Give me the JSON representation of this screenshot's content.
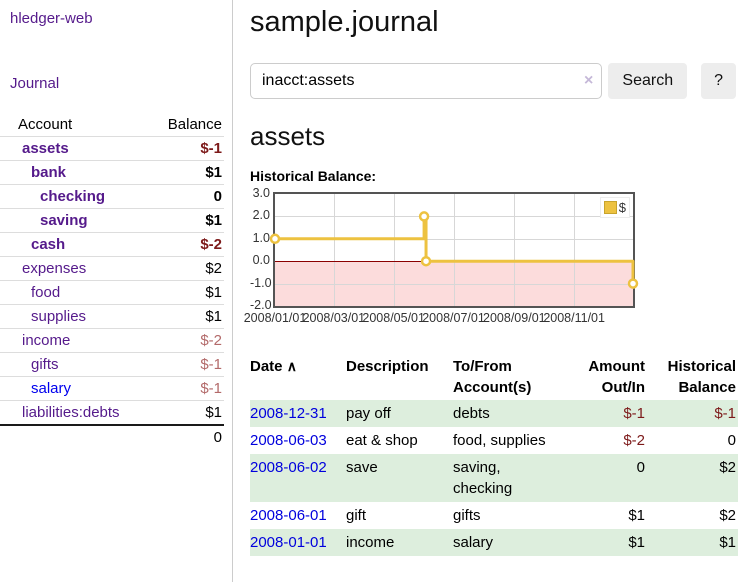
{
  "sidebar": {
    "brand": "hledger-web",
    "nav": {
      "journal": "Journal"
    },
    "accounts_table": {
      "col_account": "Account",
      "col_balance": "Balance",
      "rows": [
        {
          "name": "assets",
          "balance": "$-1"
        },
        {
          "name": "bank",
          "balance": "$1"
        },
        {
          "name": "checking",
          "balance": "0"
        },
        {
          "name": "saving",
          "balance": "$1"
        },
        {
          "name": "cash",
          "balance": "$-2"
        },
        {
          "name": "expenses",
          "balance": "$2"
        },
        {
          "name": "food",
          "balance": "$1"
        },
        {
          "name": "supplies",
          "balance": "$1"
        },
        {
          "name": "income",
          "balance": "$-2"
        },
        {
          "name": "gifts",
          "balance": "$-1"
        },
        {
          "name": "salary",
          "balance": "$-1"
        },
        {
          "name": "liabilities:debts",
          "balance": "$1"
        }
      ],
      "total": "0"
    }
  },
  "main": {
    "title": "sample.journal",
    "search": {
      "value": "inacct:assets",
      "clear_icon": "×",
      "search_button": "Search",
      "help_button": "?"
    },
    "account_heading": "assets",
    "chart_heading": "Historical Balance:"
  },
  "chart_data": {
    "type": "line",
    "step": true,
    "title": "Historical Balance",
    "xlim": [
      "2008-01-01",
      "2008-12-31"
    ],
    "ylim": [
      -2,
      3
    ],
    "grid": true,
    "legend_position": "top-right",
    "legend": [
      {
        "label": "$",
        "color": "#edc240"
      }
    ],
    "y_ticks": [
      {
        "v": 3,
        "label": "3.0"
      },
      {
        "v": 2,
        "label": "2.0"
      },
      {
        "v": 1,
        "label": "1.0"
      },
      {
        "v": 0,
        "label": "0.0"
      },
      {
        "v": -1,
        "label": "-1.0"
      },
      {
        "v": -2,
        "label": "-2.0"
      }
    ],
    "x_ticks": [
      {
        "date": "2008-01-01",
        "label": "2008/01/01"
      },
      {
        "date": "2008-03-01",
        "label": "2008/03/01"
      },
      {
        "date": "2008-05-01",
        "label": "2008/05/01"
      },
      {
        "date": "2008-07-01",
        "label": "2008/07/01"
      },
      {
        "date": "2008-09-01",
        "label": "2008/09/01"
      },
      {
        "date": "2008-11-01",
        "label": "2008/11/01"
      }
    ],
    "series": [
      {
        "name": "$",
        "color": "#edc240",
        "points": [
          [
            "2008-01-01",
            1
          ],
          [
            "2008-06-01",
            2
          ],
          [
            "2008-06-03",
            0
          ],
          [
            "2008-12-31",
            -1
          ]
        ]
      }
    ],
    "negative_region_color": "#fcdcdc",
    "zero_line_color": "#8b0000"
  },
  "register": {
    "headers": {
      "date": "Date",
      "sort_icon": "∧",
      "description": "Description",
      "accounts_l1": "To/From",
      "accounts_l2": "Account(s)",
      "amount_l1": "Amount",
      "amount_l2": "Out/In",
      "balance_l1": "Historical",
      "balance_l2": "Balance"
    },
    "rows": [
      {
        "date": "2008-12-31",
        "description": "pay off",
        "accounts": "debts",
        "amount": "$-1",
        "balance": "$-1"
      },
      {
        "date": "2008-06-03",
        "description": "eat & shop",
        "accounts": "food, supplies",
        "amount": "$-2",
        "balance": "0"
      },
      {
        "date": "2008-06-02",
        "description": "save",
        "accounts": "saving,\nchecking",
        "amount": "0",
        "balance": "$2"
      },
      {
        "date": "2008-06-01",
        "description": "gift",
        "accounts": "gifts",
        "amount": "$1",
        "balance": "$2"
      },
      {
        "date": "2008-01-01",
        "description": "income",
        "accounts": "salary",
        "amount": "$1",
        "balance": "$1"
      }
    ]
  },
  "colors": {
    "link_purple": "#551a8b",
    "link_blue": "#0000ee",
    "date_link_blue": "#0000dd",
    "negative_strong": "#7d1a1a",
    "negative_muted": "#b36a6a",
    "row_stripe_green": "#ddeedd",
    "chart_line_yellow": "#edc240",
    "chart_negative_fill": "#fcdcdc",
    "chart_zero_line": "#8b0000"
  }
}
